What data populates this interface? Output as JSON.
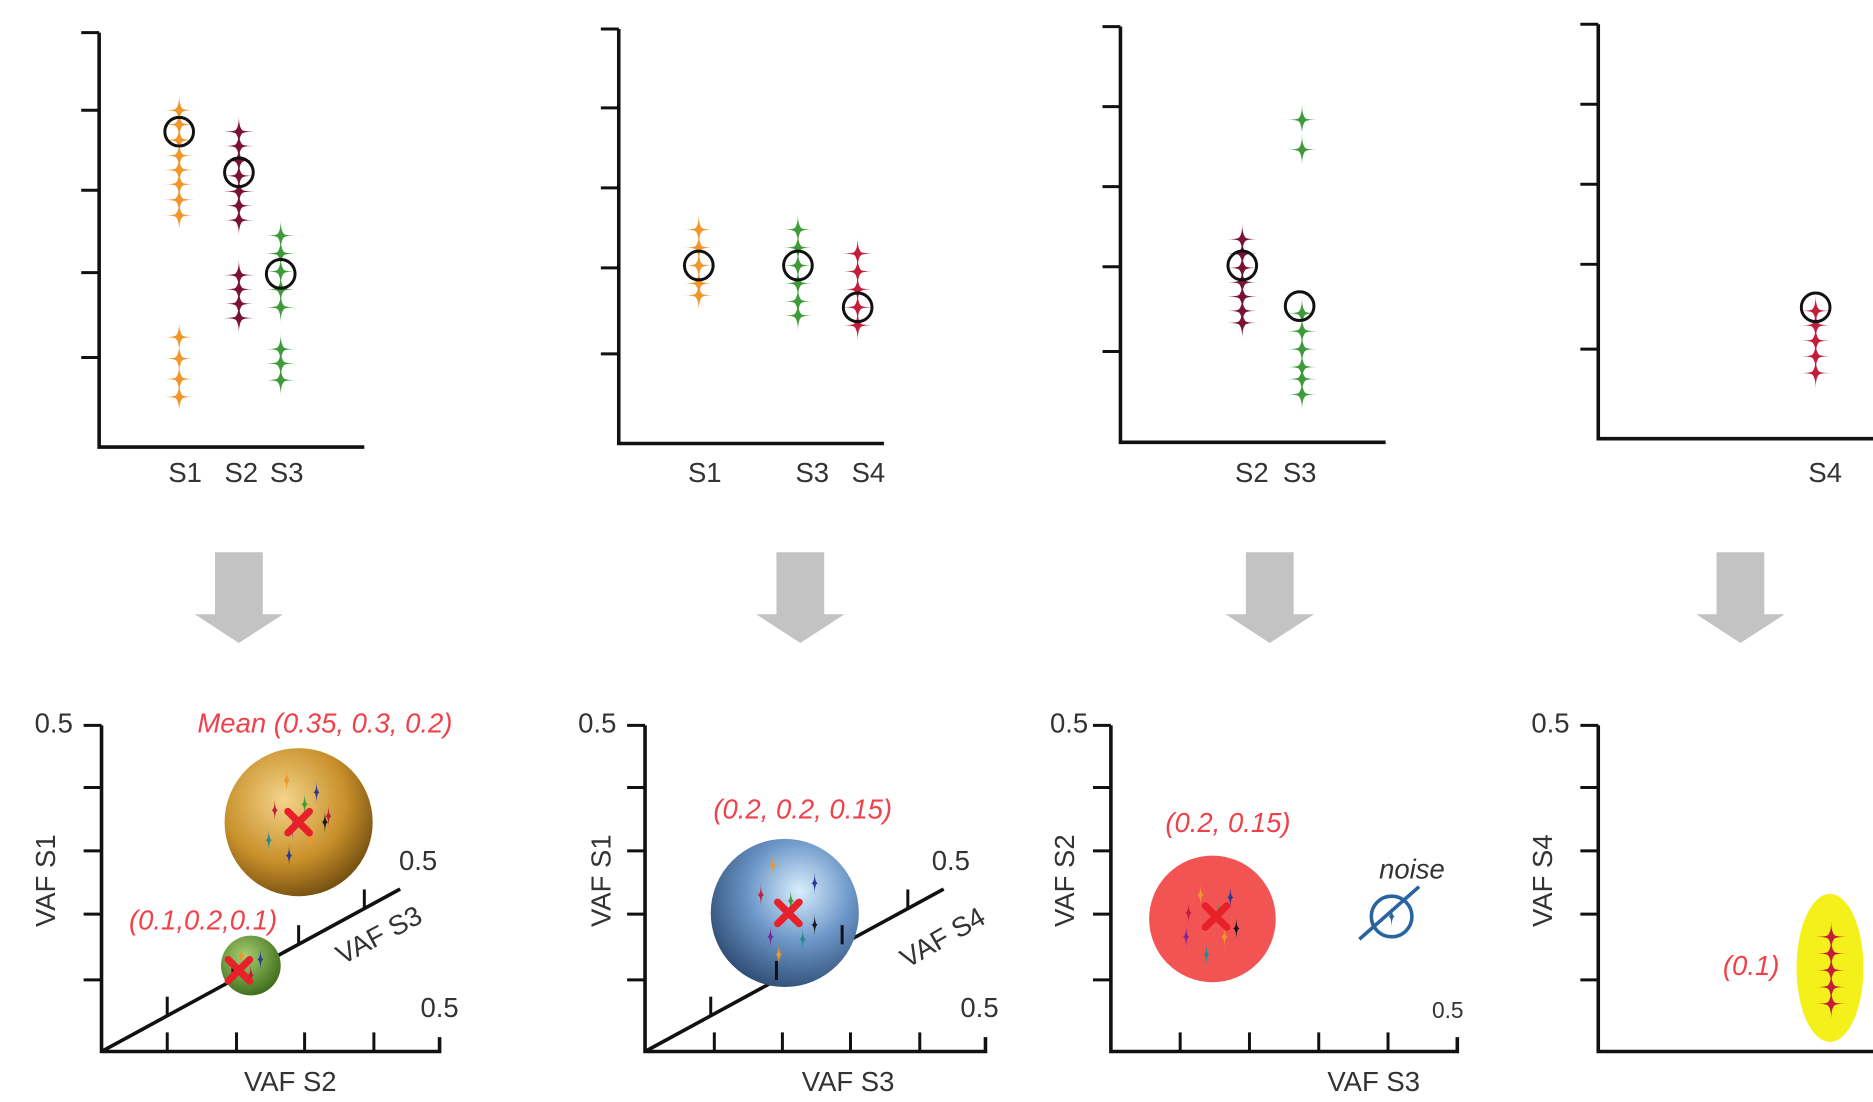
{
  "panels": [
    {
      "top_labels": [
        "S1",
        "S2",
        "S3"
      ],
      "bottom": {
        "y_max": "0.5",
        "y_axis": "VAF S1",
        "x_axis": "VAF S2",
        "x_max": "0.5",
        "depth_axis": "VAF S3",
        "depth_max": "0.5",
        "annotations": [
          "Mean (0.35, 0.3, 0.2)",
          "(0.1,0.2,0.1)"
        ]
      }
    },
    {
      "top_labels": [
        "S1",
        "S3",
        "S4"
      ],
      "bottom": {
        "y_max": "0.5",
        "y_axis": "VAF S1",
        "x_axis": "VAF S3",
        "x_max": "0.5",
        "depth_axis": "VAF S4",
        "depth_max": "0.5",
        "annotations": [
          "(0.2, 0.2, 0.15)"
        ]
      }
    },
    {
      "top_labels": [
        "S2",
        "S3"
      ],
      "bottom": {
        "y_max": "0.5",
        "y_axis": "VAF S2",
        "x_axis": "VAF S3",
        "x_max": "0.5",
        "annotations": [
          "(0.2, 0.15)",
          "noise"
        ]
      }
    },
    {
      "top_labels": [
        "S4"
      ],
      "bottom": {
        "y_max": "0.5",
        "y_axis": "VAF S4",
        "annotations": [
          "(0.1)"
        ]
      }
    }
  ]
}
